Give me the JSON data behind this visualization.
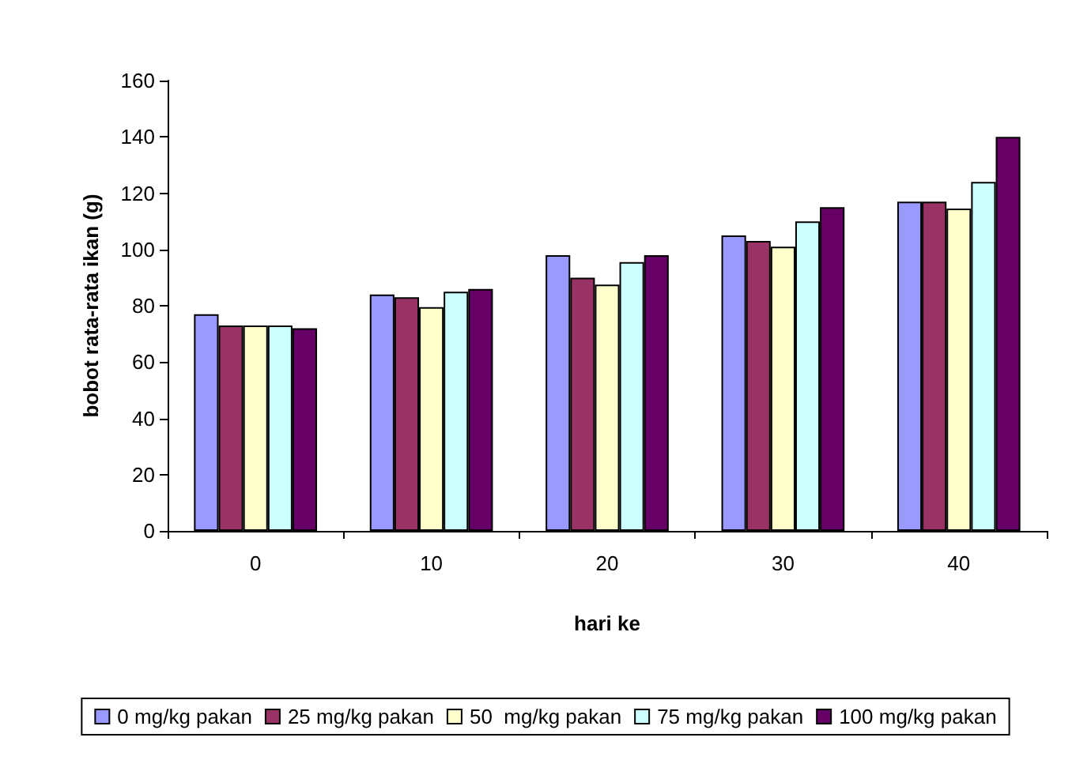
{
  "chart_data": {
    "type": "bar",
    "xlabel": "hari ke",
    "ylabel": "bobot rata-rata ikan (g)",
    "categories": [
      "0",
      "10",
      "20",
      "30",
      "40"
    ],
    "series": [
      {
        "name": "0 mg/kg pakan",
        "color": "#9999ff",
        "values": [
          77,
          84,
          98,
          105,
          117
        ]
      },
      {
        "name": "25 mg/kg pakan",
        "color": "#993366",
        "values": [
          73,
          83,
          90,
          103,
          117
        ]
      },
      {
        "name": "50  mg/kg pakan",
        "color": "#ffffcc",
        "values": [
          73,
          79.5,
          87.5,
          101,
          114.5
        ]
      },
      {
        "name": "75 mg/kg pakan",
        "color": "#ccffff",
        "values": [
          73,
          85,
          95.5,
          110,
          124
        ]
      },
      {
        "name": "100 mg/kg pakan",
        "color": "#660066",
        "values": [
          72,
          86,
          98,
          115,
          140
        ]
      }
    ],
    "ylim": [
      0,
      160
    ],
    "yticks": [
      0,
      20,
      40,
      60,
      80,
      100,
      120,
      140,
      160
    ],
    "grid": false,
    "legend": "bottom"
  }
}
